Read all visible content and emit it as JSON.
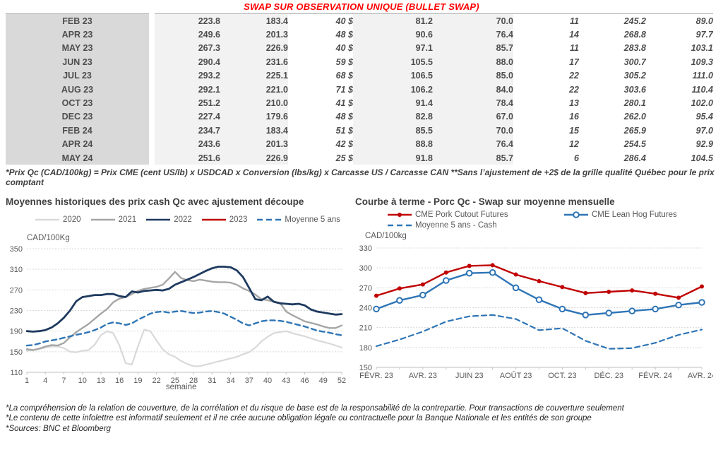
{
  "title": "SWAP SUR OBSERVATION UNIQUE (BULLET SWAP)",
  "table": {
    "rows": [
      [
        "FEB 23",
        "223.8",
        "183.4",
        "40 $",
        "81.2",
        "70.0",
        "11",
        "245.2",
        "89.0"
      ],
      [
        "APR 23",
        "249.6",
        "201.3",
        "48 $",
        "90.6",
        "76.4",
        "14",
        "268.8",
        "97.7"
      ],
      [
        "MAY 23",
        "267.3",
        "226.9",
        "40 $",
        "97.1",
        "85.7",
        "11",
        "283.8",
        "103.1"
      ],
      [
        "JUN 23",
        "290.4",
        "231.6",
        "59 $",
        "105.5",
        "88.0",
        "17",
        "300.7",
        "109.3"
      ],
      [
        "JUL 23",
        "293.2",
        "225.1",
        "68 $",
        "106.5",
        "85.0",
        "22",
        "305.2",
        "111.0"
      ],
      [
        "AUG 23",
        "292.1",
        "221.0",
        "71 $",
        "106.2",
        "84.0",
        "22",
        "303.6",
        "110.4"
      ],
      [
        "OCT 23",
        "251.2",
        "210.0",
        "41 $",
        "91.4",
        "78.4",
        "13",
        "280.1",
        "102.0"
      ],
      [
        "DEC 23",
        "227.4",
        "179.6",
        "48 $",
        "82.8",
        "67.0",
        "16",
        "262.0",
        "95.4"
      ],
      [
        "FEB 24",
        "234.7",
        "183.4",
        "51 $",
        "85.5",
        "70.0",
        "15",
        "265.9",
        "97.0"
      ],
      [
        "APR 24",
        "243.6",
        "201.3",
        "42 $",
        "88.8",
        "76.4",
        "12",
        "254.5",
        "92.9"
      ],
      [
        "MAY 24",
        "251.6",
        "226.9",
        "25 $",
        "91.8",
        "85.7",
        "6",
        "286.4",
        "104.5"
      ]
    ]
  },
  "table_footnote": "*Prix Qc (CAD/100kg) = Prix CME (cent US/lb) x USDCAD x Conversion (lbs/kg) x Carcasse US / Carcasse CAN **Sans l’ajustement de +2$ de la grille qualité Québec pour le prix comptant",
  "colors": {
    "title_red": "#ff0000",
    "table_green": "#00b050",
    "table_blue": "#2e75b6",
    "series_2020": "#d9d9d9",
    "series_2021": "#a6a6a6",
    "series_2022": "#1e3a5f",
    "series_2023": "#c00000",
    "series_avg": "#2e75b6",
    "grid": "#d9d9d9",
    "axis_text": "#595959"
  },
  "chart_data": [
    {
      "type": "line",
      "title": "Moyennes historiques des prix cash Qc avec ajustement découpe",
      "ylabel": "CAD/100Kg",
      "xlabel": "semaine",
      "ylim": [
        110,
        350
      ],
      "ytick_step": 40,
      "grid": true,
      "legend_position": "top",
      "xticks": [
        1,
        4,
        7,
        10,
        13,
        16,
        19,
        22,
        25,
        28,
        31,
        34,
        37,
        40,
        43,
        46,
        49,
        52
      ],
      "x_unit": "week",
      "series": [
        {
          "name": "2020",
          "color": "#d9d9d9",
          "dash": false,
          "width": 2.2,
          "values": [
            152,
            153,
            155,
            158,
            160,
            160,
            157,
            150,
            149,
            152,
            153,
            164,
            182,
            190,
            186,
            162,
            128,
            125,
            160,
            193,
            190,
            172,
            155,
            145,
            140,
            132,
            126,
            122,
            122,
            125,
            128,
            131,
            134,
            137,
            140,
            145,
            149,
            158,
            170,
            179,
            186,
            188,
            190,
            186,
            183,
            180,
            176,
            172,
            169,
            166,
            162,
            158
          ]
        },
        {
          "name": "2021",
          "color": "#a6a6a6",
          "dash": false,
          "width": 2.4,
          "values": [
            155,
            153,
            156,
            160,
            163,
            162,
            167,
            178,
            188,
            196,
            204,
            214,
            224,
            233,
            246,
            253,
            256,
            262,
            268,
            272,
            274,
            276,
            280,
            292,
            305,
            293,
            289,
            287,
            290,
            288,
            286,
            285,
            285,
            284,
            280,
            273,
            268,
            261,
            252,
            250,
            247,
            245,
            228,
            221,
            215,
            209,
            206,
            203,
            199,
            196,
            196,
            201
          ]
        },
        {
          "name": "2022",
          "color": "#1e3a5f",
          "dash": false,
          "width": 2.8,
          "values": [
            190,
            189,
            190,
            192,
            197,
            205,
            216,
            230,
            248,
            256,
            258,
            260,
            260,
            262,
            262,
            258,
            256,
            267,
            265,
            268,
            269,
            270,
            269,
            272,
            280,
            285,
            290,
            295,
            301,
            307,
            312,
            315,
            315,
            314,
            308,
            295,
            274,
            252,
            250,
            257,
            247,
            244,
            243,
            242,
            243,
            240,
            232,
            228,
            226,
            224,
            222,
            223
          ]
        },
        {
          "name": "2023",
          "color": "#c00000",
          "dash": false,
          "width": 2.4,
          "values": []
        },
        {
          "name": "Moyenne 5 ans",
          "color": "#2e75b6",
          "dash": true,
          "width": 2.4,
          "values": [
            162,
            163,
            166,
            170,
            172,
            174,
            177,
            180,
            183,
            185,
            188,
            192,
            197,
            204,
            207,
            205,
            202,
            205,
            212,
            218,
            224,
            227,
            228,
            226,
            228,
            229,
            227,
            225,
            226,
            228,
            229,
            227,
            224,
            218,
            212,
            205,
            201,
            205,
            209,
            211,
            211,
            210,
            208,
            205,
            202,
            199,
            195,
            191,
            189,
            187,
            184,
            182
          ]
        }
      ]
    },
    {
      "type": "line",
      "title": "Courbe à terme - Porc Qc - Swap sur moyenne mensuelle",
      "ylabel": "CAD/100kg",
      "xlabel": "",
      "ylim": [
        150,
        330
      ],
      "ytick_step": 30,
      "grid": true,
      "legend_position": "top",
      "xticklabels": [
        "FÉVR. 23",
        "AVR. 23",
        "JUIN 23",
        "AOÛT 23",
        "OCT. 23",
        "DÉC. 23",
        "FÉVR. 24",
        "AVR. 24"
      ],
      "xtick_every": 2,
      "series": [
        {
          "name": "CME Pork Cutout Futures",
          "color": "#c00000",
          "dash": false,
          "width": 2.4,
          "marker": "filled",
          "values": [
            258,
            269,
            275,
            293,
            303,
            304,
            290,
            280,
            271,
            262,
            264,
            266,
            261,
            255,
            272
          ]
        },
        {
          "name": "CME Lean Hog Futures",
          "color": "#2e75b6",
          "dash": false,
          "width": 2.4,
          "marker": "open",
          "values": [
            238,
            251,
            259,
            281,
            292,
            293,
            270,
            252,
            238,
            229,
            232,
            235,
            238,
            244,
            248
          ]
        },
        {
          "name": "Moyenne 5 ans - Cash",
          "color": "#2e75b6",
          "dash": true,
          "width": 2.2,
          "values": [
            182,
            192,
            204,
            219,
            227,
            229,
            223,
            206,
            209,
            190,
            178,
            179,
            187,
            199,
            207
          ]
        }
      ]
    }
  ],
  "footnotes": [
    "*La compréhension de la relation de couverture, de la corrélation et du risque de base est de la responsabilité de la contrepartie. Pour transactions de couverture seulement",
    "*Le contenu de cette infolettre est informatif seulement et il ne crée aucune obligation légale ou contractuelle pour la Banque Nationale et les entités de son groupe",
    "*Sources: BNC et Bloomberg"
  ]
}
